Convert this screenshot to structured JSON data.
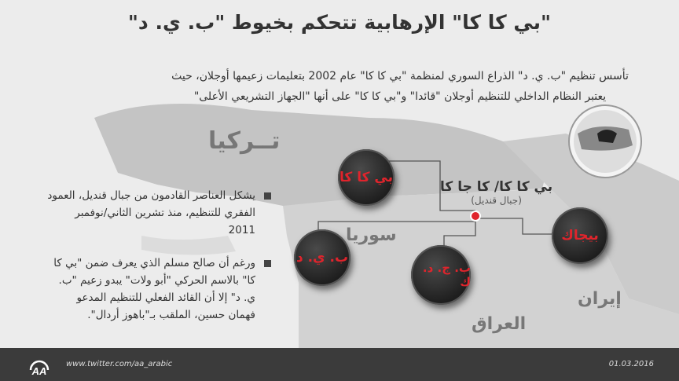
{
  "title": "\"بي كا كا\" الإرهابية تتحكم بخيوط \"ب. ي. د\"",
  "intro": "تأسس تنظيم \"ب. ي. د\" الذراع السوري لمنظمة \"بي كا كا\" عام 2002 بتعليمات زعيمها أوجلان، حيث يعتبر النظام الداخلي للتنظيم أوجلان \"قائدا\" و\"بي كا كا\" على أنها \"الجهاز التشريعي الأعلى\"",
  "countries": {
    "turkey": "تــركيا",
    "syria": "سوريا",
    "iraq": "العراق",
    "iran": "إيران"
  },
  "bullets": [
    "يشكل العناصر القادمون من جبال قنديل، العمود الفقري للتنظيم، منذ تشرين الثاني/نوفمبر 2011",
    "ورغم أن صالح مسلم الذي يعرف ضمن \"بي كا كا\" بالاسم الحركي \"أبو ولات\" يبدو زعيم \"ب. ي. د\" إلا أن القائد الفعلي للتنظيم المدعو فهمان حسين، الملقب بـ\"باهوز أردال\"."
  ],
  "hub": {
    "name": "بي كا كا/ كا جا كا",
    "location": "(جبال قنديل)"
  },
  "nodes": {
    "pkk": "بي كا كا",
    "pyd": "ب. ي. د",
    "kcdk": "ب. ج. د. ك",
    "pjak": "بيجاك"
  },
  "footer": {
    "twitter": "www.twitter.com/aa_arabic",
    "date": "01.03.2016",
    "logo": "AA"
  },
  "colors": {
    "accent": "#e0242c",
    "footer": "#3b3b3b"
  }
}
